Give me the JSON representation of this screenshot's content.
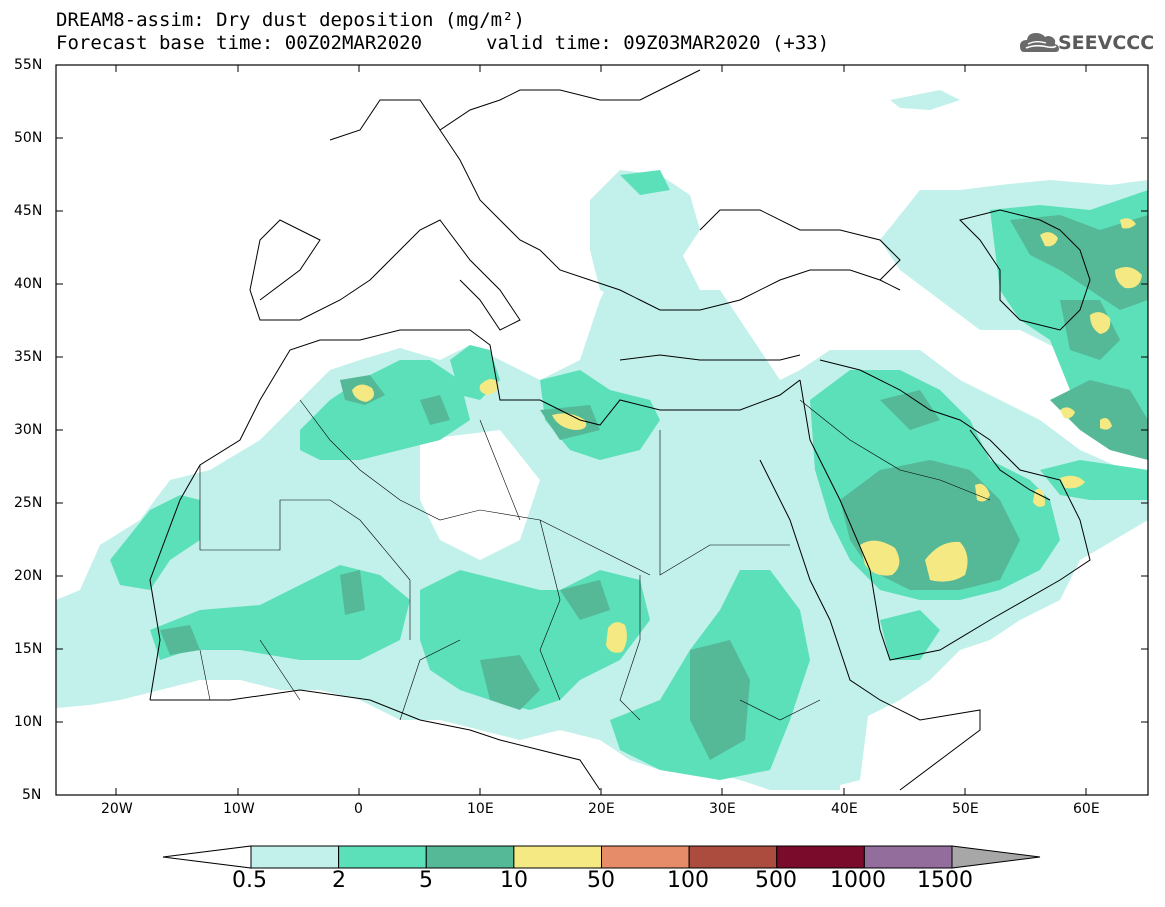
{
  "title": {
    "line1": "DREAM8-assim: Dry dust deposition (mg/m²)",
    "line2": "Forecast base time: 00Z02MAR2020",
    "valid": "valid time: 09Z03MAR2020 (+33)"
  },
  "logo": {
    "text": "SEEVCCC",
    "icon": "cloud-icon"
  },
  "axes": {
    "lat_ticks": [
      "55N",
      "50N",
      "45N",
      "40N",
      "35N",
      "30N",
      "25N",
      "20N",
      "15N",
      "10N",
      "5N"
    ],
    "lon_ticks": [
      "20W",
      "10W",
      "0",
      "10E",
      "20E",
      "30E",
      "40E",
      "50E",
      "60E"
    ],
    "lat_range": [
      5,
      55
    ],
    "lon_range": [
      -25,
      65
    ]
  },
  "colorbar": {
    "labels": [
      "0.5",
      "2",
      "5",
      "10",
      "50",
      "100",
      "500",
      "1000",
      "1500"
    ],
    "colors": [
      "#c1f1ea",
      "#5ce0ba",
      "#55b896",
      "#f4e982",
      "#e78c68",
      "#ab4c3f",
      "#7b0b2a",
      "#936d9b"
    ],
    "under_color": "#ffffff",
    "over_color": "#a7a7a7"
  },
  "colors": {
    "land_boundary": "#000000",
    "frame": "#000000"
  }
}
